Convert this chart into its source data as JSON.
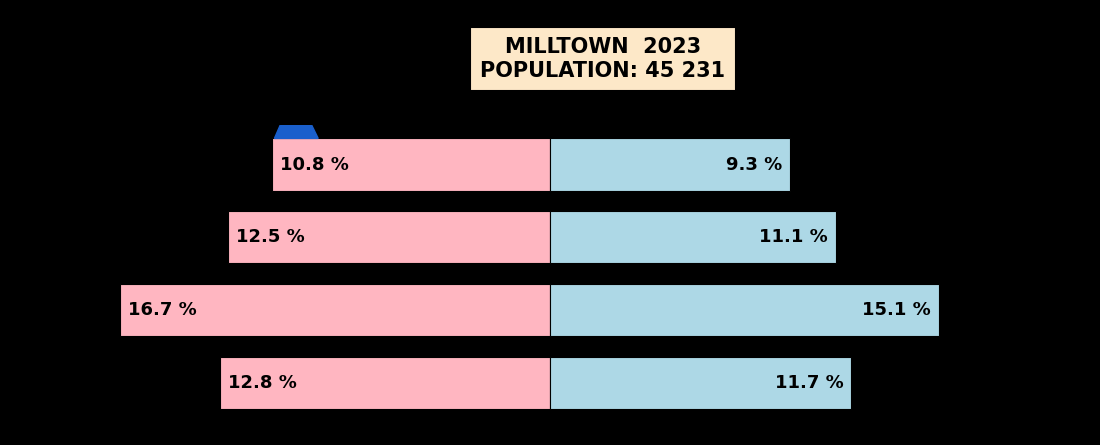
{
  "title_line1": "MILLTOWN  2023",
  "title_line2": "POPULATION: 45 231",
  "title_bg": "#fde8c8",
  "title_fontsize": 15,
  "background_color": "#000000",
  "female_color": "#ffb6c1",
  "male_color": "#add8e6",
  "female_values": [
    10.8,
    12.5,
    16.7,
    12.8
  ],
  "male_values": [
    9.3,
    11.1,
    15.1,
    11.7
  ],
  "bar_height": 0.72,
  "xlim": 20.5,
  "triangle_color": "#1a5fcc",
  "label_fontsize": 13
}
